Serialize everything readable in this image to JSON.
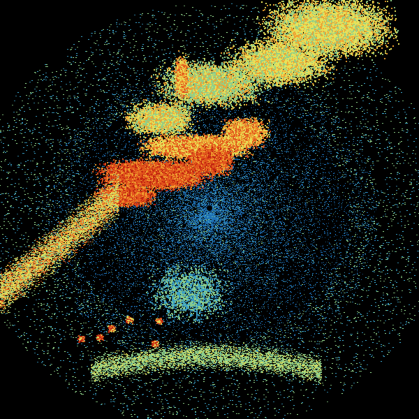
{
  "radar": {
    "background": "#000000",
    "palette": {
      "weak": "#1e6fb4",
      "light": "#3aa0c8",
      "low": "#8fd08a",
      "moderate": "#e8e35a",
      "strong": "#f0a030",
      "heavy": "#e2541c",
      "intense": "#c0200f"
    }
  }
}
